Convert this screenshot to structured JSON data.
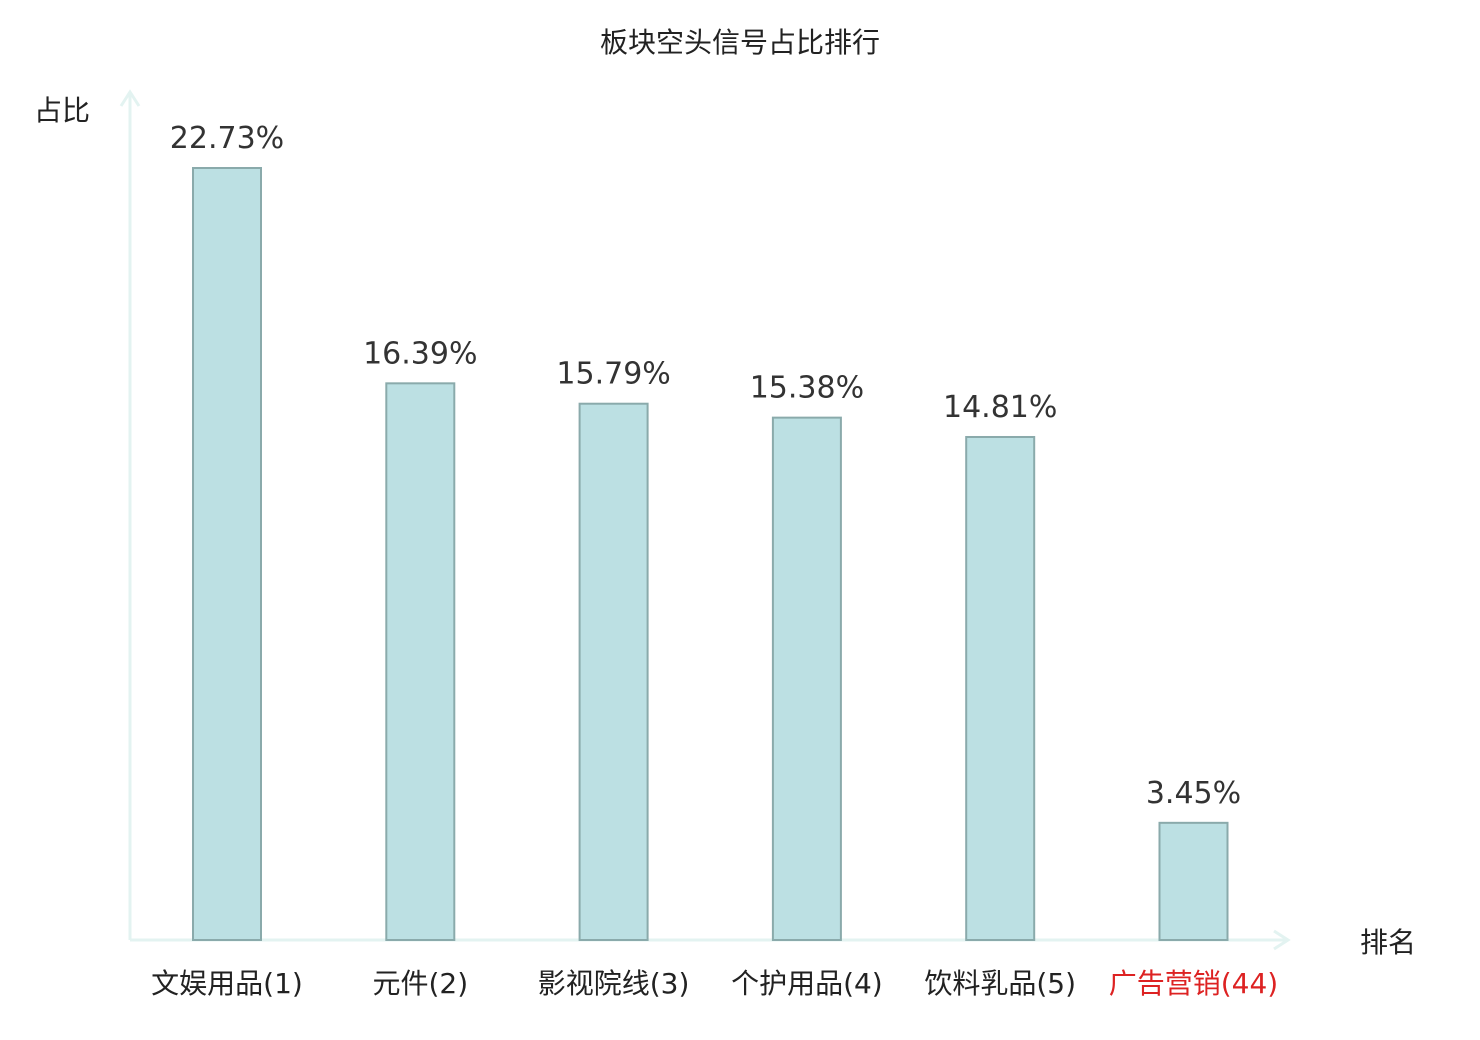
{
  "chart_data": {
    "type": "bar",
    "title": "板块空头信号占比排行",
    "ylabel": "占比",
    "xlabel": "排名",
    "categories": [
      "文娱用品(1)",
      "元件(2)",
      "影视院线(3)",
      "个护用品(4)",
      "饮料乳品(5)",
      "广告营销(44)"
    ],
    "values": [
      22.73,
      16.39,
      15.79,
      15.38,
      14.81,
      3.45
    ],
    "value_labels": [
      "22.73%",
      "16.39%",
      "15.79%",
      "15.38%",
      "14.81%",
      "3.45%"
    ],
    "highlight_index": 5,
    "ylim": [
      0,
      22.73
    ],
    "grid": false,
    "legend": "none",
    "colors": {
      "bar_fill": "#bce0e3",
      "bar_stroke": "#8aaaab",
      "axis": "#e3f3f1",
      "highlight_text": "#dd2222"
    }
  }
}
